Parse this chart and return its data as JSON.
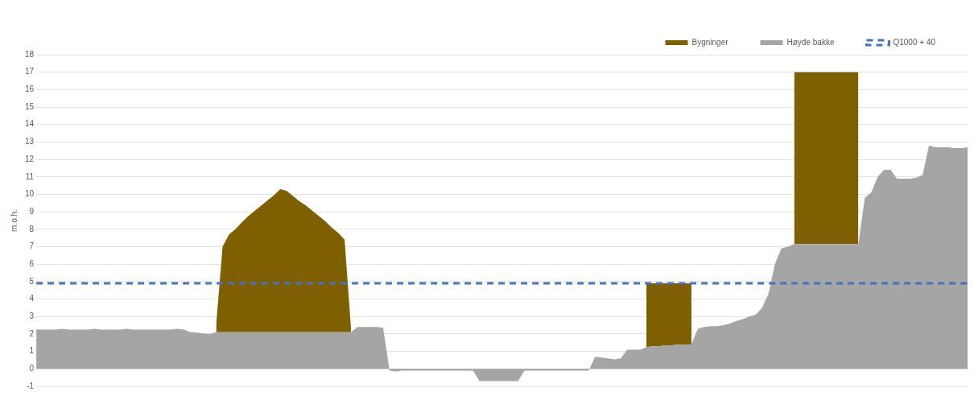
{
  "chart_data": {
    "type": "area",
    "ylabel": "m.o.h.",
    "categories": [
      null,
      null,
      null,
      null,
      null,
      null,
      null,
      null,
      null,
      null,
      null,
      null,
      null,
      null,
      null,
      null,
      null,
      null,
      null,
      null,
      null,
      null,
      null,
      null,
      null,
      null,
      null,
      null,
      null,
      null,
      null,
      null,
      null,
      null,
      null,
      null,
      null,
      null,
      null,
      null,
      null,
      null,
      null,
      null,
      null,
      null,
      null,
      null,
      null,
      null,
      null,
      null,
      null,
      null,
      null,
      null,
      null,
      null,
      null,
      null,
      null,
      null,
      null,
      null,
      null,
      null,
      null,
      null,
      null,
      null,
      null,
      null,
      null,
      null,
      null,
      null,
      null,
      null,
      null,
      null,
      null,
      null,
      null,
      null,
      null,
      null,
      null,
      null,
      null,
      null,
      null,
      null,
      null,
      null,
      null,
      null,
      null,
      null,
      null,
      null,
      null,
      null,
      null,
      null,
      null,
      null,
      null,
      null,
      null,
      null,
      null,
      null,
      null,
      null,
      null,
      null,
      null,
      null,
      null,
      null,
      null,
      null,
      null,
      null,
      null,
      null,
      null,
      null,
      null,
      null,
      null,
      null,
      null,
      null,
      null,
      null,
      null,
      null,
      null,
      null,
      null,
      null,
      null,
      null,
      null,
      null
    ],
    "series": [
      {
        "name": "Bygninger",
        "color": "#7f6000",
        "values": [
          null,
          null,
          null,
          null,
          null,
          null,
          null,
          null,
          null,
          null,
          null,
          null,
          null,
          null,
          null,
          null,
          null,
          null,
          null,
          null,
          null,
          null,
          null,
          null,
          null,
          null,
          null,
          null,
          2.5,
          7.0,
          7.7,
          8.0,
          8.4,
          8.75,
          9.05,
          9.35,
          9.65,
          9.95,
          10.3,
          10.2,
          9.9,
          9.6,
          9.35,
          9.05,
          8.75,
          8.45,
          8.1,
          7.8,
          7.4,
          2.3,
          null,
          null,
          null,
          null,
          null,
          null,
          null,
          null,
          null,
          null,
          null,
          null,
          null,
          null,
          null,
          null,
          null,
          null,
          null,
          null,
          null,
          null,
          null,
          null,
          null,
          null,
          null,
          null,
          null,
          null,
          null,
          null,
          null,
          null,
          null,
          null,
          null,
          null,
          null,
          null,
          null,
          null,
          null,
          null,
          null,
          4.9,
          4.9,
          4.9,
          4.9,
          4.9,
          4.9,
          4.9,
          4.9,
          null,
          null,
          null,
          null,
          null,
          null,
          null,
          null,
          null,
          null,
          null,
          null,
          null,
          null,
          null,
          17,
          17,
          17,
          17,
          17,
          17,
          17,
          17,
          17,
          17,
          17,
          null,
          null,
          null,
          null,
          null,
          null,
          null,
          null,
          null,
          null,
          null,
          null,
          null,
          null,
          null,
          null,
          null
        ]
      },
      {
        "name": "Høyde bakke",
        "color": "#a5a5a5",
        "values": [
          2.25,
          2.25,
          2.25,
          2.25,
          2.3,
          2.25,
          2.25,
          2.25,
          2.25,
          2.3,
          2.25,
          2.25,
          2.25,
          2.25,
          2.3,
          2.25,
          2.25,
          2.25,
          2.25,
          2.25,
          2.25,
          2.25,
          2.3,
          2.25,
          2.1,
          2.08,
          2.03,
          2.0,
          2.1,
          2.1,
          2.1,
          2.1,
          2.1,
          2.1,
          2.1,
          2.1,
          2.1,
          2.1,
          2.1,
          2.1,
          2.1,
          2.1,
          2.1,
          2.1,
          2.1,
          2.1,
          2.1,
          2.1,
          2.1,
          2.1,
          2.4,
          2.4,
          2.4,
          2.4,
          2.35,
          -0.1,
          -0.15,
          -0.1,
          -0.1,
          -0.1,
          -0.1,
          -0.1,
          -0.1,
          -0.1,
          -0.1,
          -0.1,
          -0.1,
          -0.1,
          -0.1,
          -0.7,
          -0.7,
          -0.7,
          -0.7,
          -0.7,
          -0.7,
          -0.7,
          -0.1,
          -0.1,
          -0.1,
          -0.1,
          -0.1,
          -0.1,
          -0.1,
          -0.1,
          -0.1,
          -0.1,
          -0.1,
          0.7,
          0.65,
          0.6,
          0.55,
          0.6,
          1.1,
          1.1,
          1.1,
          1.25,
          1.3,
          1.3,
          1.35,
          1.35,
          1.4,
          1.4,
          1.4,
          2.3,
          2.4,
          2.45,
          2.45,
          2.5,
          2.6,
          2.75,
          2.85,
          3.0,
          3.1,
          3.5,
          4.3,
          6.0,
          6.9,
          7.0,
          7.15,
          7.15,
          7.15,
          7.15,
          7.15,
          7.15,
          7.15,
          7.15,
          7.15,
          7.15,
          7.15,
          9.8,
          10.1,
          11.0,
          11.4,
          11.4,
          10.9,
          10.9,
          10.9,
          10.95,
          11.1,
          12.8,
          12.7,
          12.7,
          12.7,
          12.65,
          12.65,
          12.7
        ]
      },
      {
        "name": "Q1000 + 40",
        "type": "line",
        "color": "#4472c4",
        "values": [
          4.9,
          4.9,
          4.9,
          4.9,
          4.9,
          4.9,
          4.9,
          4.9,
          4.9,
          4.9,
          4.9,
          4.9,
          4.9,
          4.9,
          4.9,
          4.9,
          4.9,
          4.9,
          4.9,
          4.9,
          4.9,
          4.9,
          4.9,
          4.9,
          4.9,
          4.9,
          4.9,
          4.9,
          4.9,
          4.9,
          4.9,
          4.9,
          4.9,
          4.9,
          4.9,
          4.9,
          4.9,
          4.9,
          4.9,
          4.9,
          4.9,
          4.9,
          4.9,
          4.9,
          4.9,
          4.9,
          4.9,
          4.9,
          4.9,
          4.9,
          4.9,
          4.9,
          4.9,
          4.9,
          4.9,
          4.9,
          4.9,
          4.9,
          4.9,
          4.9,
          4.9,
          4.9,
          4.9,
          4.9,
          4.9,
          4.9,
          4.9,
          4.9,
          4.9,
          4.9,
          4.9,
          4.9,
          4.9,
          4.9,
          4.9,
          4.9,
          4.9,
          4.9,
          4.9,
          4.9,
          4.9,
          4.9,
          4.9,
          4.9,
          4.9,
          4.9,
          4.9,
          4.9,
          4.9,
          4.9,
          4.9,
          4.9,
          4.9,
          4.9,
          4.9,
          4.9,
          4.9,
          4.9,
          4.9,
          4.9,
          4.9,
          4.9,
          4.9,
          4.9,
          4.9,
          4.9,
          4.9,
          4.9,
          4.9,
          4.9,
          4.9,
          4.9,
          4.9,
          4.9,
          4.9,
          4.9,
          4.9,
          4.9,
          4.9,
          4.9,
          4.9,
          4.9,
          4.9,
          4.9,
          4.9,
          4.9,
          4.9,
          4.9,
          4.9,
          4.9,
          4.9,
          4.9,
          4.9,
          4.9,
          4.9,
          4.9,
          4.9,
          4.9,
          4.9,
          4.9,
          4.9,
          4.9,
          4.9,
          4.9,
          4.9,
          4.9
        ]
      }
    ],
    "line_style": "dashed",
    "ylim": [
      -1,
      18
    ],
    "yticks": [
      {
        "value": -1,
        "label": "-1"
      },
      0,
      1,
      2,
      3,
      4,
      5,
      6,
      7,
      8,
      9,
      10,
      11,
      12,
      13,
      14,
      15,
      16,
      17,
      18
    ],
    "grid": "y",
    "legend": "top right",
    "tick_labels": "y"
  }
}
